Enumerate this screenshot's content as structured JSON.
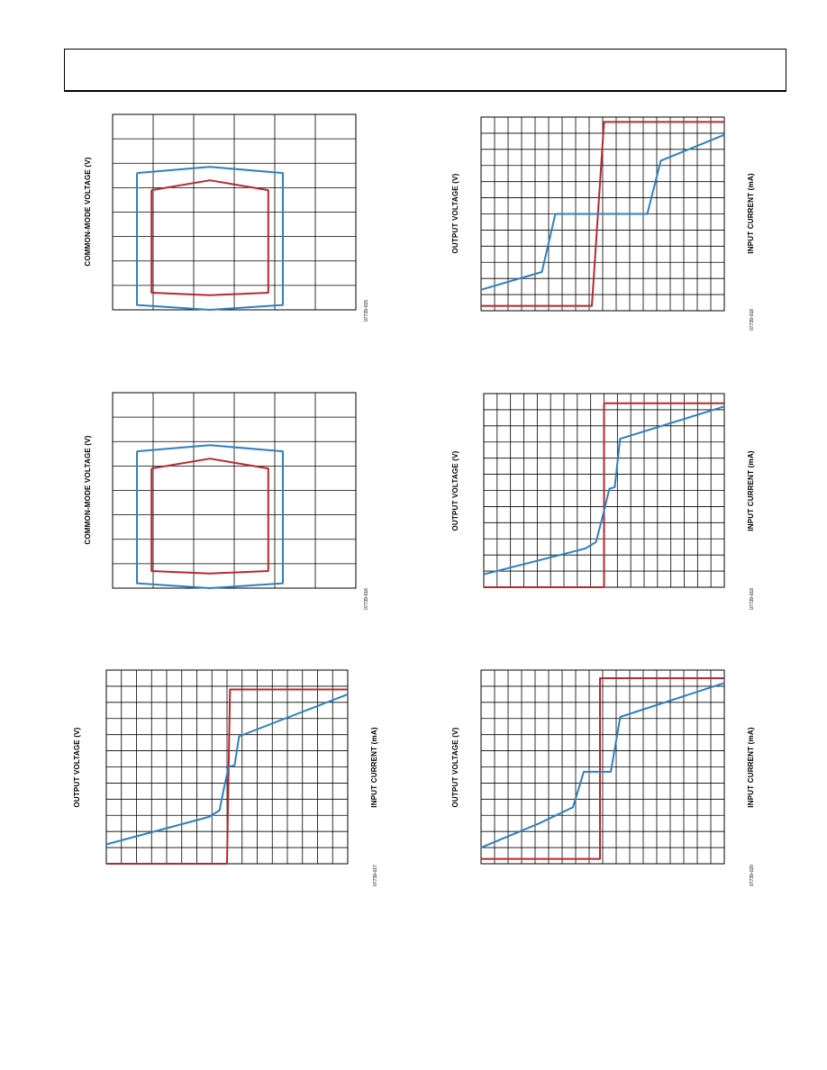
{
  "colors": {
    "blue": "#2f7fc1",
    "red": "#b8282e",
    "grid": "#000000"
  },
  "chart_data": [
    {
      "type": "line",
      "ylabel": "COMMON-MODE VOLTAGE (V)",
      "figure_id": "07739-015",
      "xlim": [
        0,
        10
      ],
      "ylim": [
        0,
        8
      ],
      "grid_x": 6,
      "grid_y": 8,
      "series": [
        {
          "color": "blue",
          "x": [
            1,
            4,
            7,
            7,
            4,
            1,
            1
          ],
          "y": [
            5.6,
            5.85,
            5.6,
            0.2,
            0,
            0.2,
            5.6
          ]
        },
        {
          "color": "red",
          "x": [
            1.6,
            4,
            6.4,
            6.4,
            4,
            1.6,
            1.6
          ],
          "y": [
            4.9,
            5.3,
            4.9,
            0.7,
            0.6,
            0.7,
            4.9
          ]
        }
      ]
    },
    {
      "type": "line",
      "ylabel": "OUTPUT VOLTAGE (V)",
      "y2label": "INPUT CURRENT (mA)",
      "figure_id": "07739-018",
      "xlim": [
        0,
        18
      ],
      "ylim": [
        0,
        12
      ],
      "grid_x": 18,
      "grid_y": 12,
      "series": [
        {
          "color": "red",
          "x": [
            0,
            8.2,
            9.1,
            18
          ],
          "y": [
            0.3,
            0.3,
            11.7,
            11.7
          ]
        },
        {
          "color": "blue",
          "x": [
            0,
            4.5,
            5.5,
            12.3,
            13.3,
            18
          ],
          "y": [
            1.3,
            2.4,
            6.0,
            6.0,
            9.3,
            10.9
          ]
        }
      ]
    },
    {
      "type": "line",
      "ylabel": "COMMON-MODE VOLTAGE (V)",
      "figure_id": "07739-016",
      "xlim": [
        0,
        10
      ],
      "ylim": [
        0,
        8
      ],
      "grid_x": 6,
      "grid_y": 8,
      "series": [
        {
          "color": "blue",
          "x": [
            1,
            4,
            7,
            7,
            4,
            1,
            1
          ],
          "y": [
            5.6,
            5.85,
            5.6,
            0.2,
            0,
            0.2,
            5.6
          ]
        },
        {
          "color": "red",
          "x": [
            1.6,
            4,
            6.4,
            6.4,
            4,
            1.6,
            1.6
          ],
          "y": [
            4.9,
            5.3,
            4.9,
            0.7,
            0.6,
            0.7,
            4.9
          ]
        }
      ]
    },
    {
      "type": "line",
      "ylabel": "OUTPUT VOLTAGE (V)",
      "y2label": "INPUT CURRENT (mA)",
      "figure_id": "07739-019",
      "xlim": [
        0,
        18
      ],
      "ylim": [
        0,
        12
      ],
      "grid_x": 18,
      "grid_y": 12,
      "series": [
        {
          "color": "red",
          "x": [
            0,
            9,
            9,
            18
          ],
          "y": [
            0,
            0,
            11.4,
            11.4
          ]
        },
        {
          "color": "blue",
          "x": [
            0,
            7.6,
            8.4,
            8.9,
            9.4,
            9.8,
            10.2,
            18
          ],
          "y": [
            0.8,
            2.4,
            2.8,
            4.4,
            6.1,
            6.2,
            9.2,
            11.2
          ]
        }
      ]
    },
    {
      "type": "line",
      "ylabel": "OUTPUT VOLTAGE (V)",
      "y2label": "INPUT CURRENT (mA)",
      "figure_id": "07739-017",
      "xlim": [
        0,
        16
      ],
      "ylim": [
        0,
        12
      ],
      "grid_x": 16,
      "grid_y": 12,
      "series": [
        {
          "color": "red",
          "x": [
            0,
            8,
            8.2,
            16
          ],
          "y": [
            0,
            0,
            10.8,
            10.8
          ]
        },
        {
          "color": "blue",
          "x": [
            0,
            6.8,
            7.5,
            7.8,
            8.1,
            8.5,
            8.8,
            16
          ],
          "y": [
            1.2,
            2.9,
            3.3,
            4.7,
            6,
            6.1,
            7.9,
            10.5
          ]
        }
      ]
    },
    {
      "type": "line",
      "ylabel": "OUTPUT VOLTAGE (V)",
      "y2label": "INPUT CURRENT (mA)",
      "figure_id": "07739-020",
      "xlim": [
        0,
        18
      ],
      "ylim": [
        0,
        12
      ],
      "grid_x": 18,
      "grid_y": 12,
      "series": [
        {
          "color": "red",
          "x": [
            0,
            8.8,
            8.8,
            18
          ],
          "y": [
            0.3,
            0.3,
            11.5,
            11.5
          ]
        },
        {
          "color": "blue",
          "x": [
            0,
            4.3,
            6.8,
            7.6,
            9.6,
            10.3,
            18
          ],
          "y": [
            1,
            2.5,
            3.5,
            5.7,
            5.7,
            9.1,
            11.2
          ]
        }
      ]
    }
  ]
}
